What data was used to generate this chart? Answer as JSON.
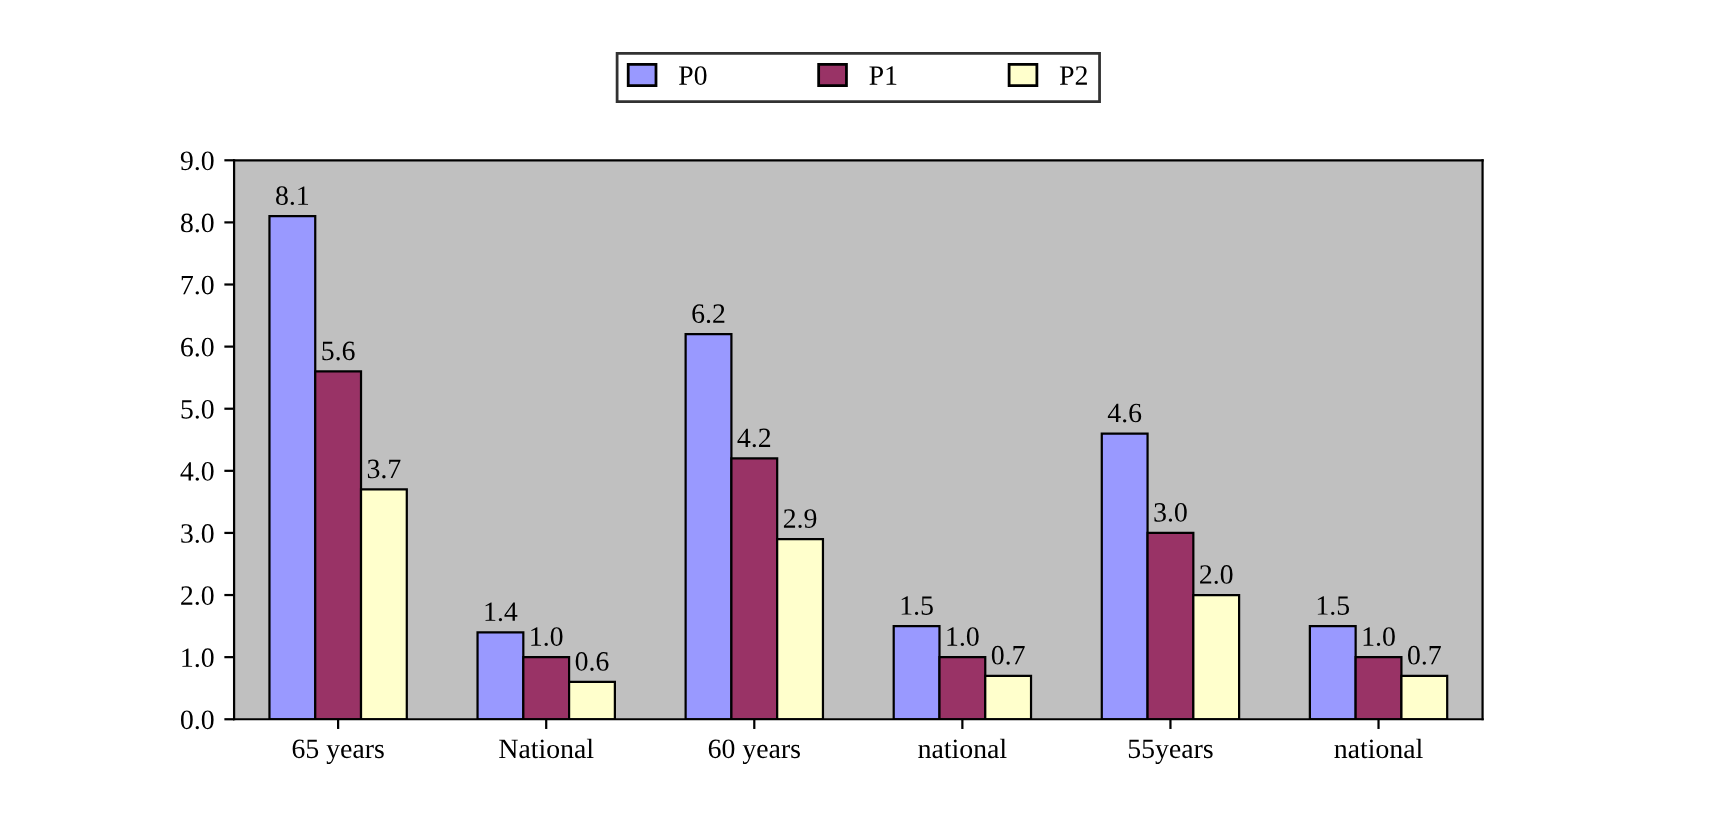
{
  "chart_data": {
    "type": "bar",
    "categories": [
      "65 years",
      "National",
      "60 years",
      "national",
      "55years",
      "national"
    ],
    "series": [
      {
        "name": "P0",
        "color": "#9999ff",
        "values": [
          8.1,
          1.4,
          6.2,
          1.5,
          4.6,
          1.5
        ],
        "value_labels": [
          "8.1",
          "1.4",
          "6.2",
          "1.5",
          "4.6",
          "1.5"
        ]
      },
      {
        "name": "P1",
        "color": "#993366",
        "values": [
          5.6,
          1.0,
          4.2,
          1.0,
          3.0,
          1.0
        ],
        "value_labels": [
          "5.6",
          "1.0",
          "4.2",
          "1.0",
          "3.0",
          "1.0"
        ]
      },
      {
        "name": "P2",
        "color": "#ffffcc",
        "values": [
          3.7,
          0.6,
          2.9,
          0.7,
          2.0,
          0.7
        ],
        "value_labels": [
          "3.7",
          "0.6",
          "2.9",
          "0.7",
          "2.0",
          "0.7"
        ]
      }
    ],
    "ylim": [
      0,
      9
    ],
    "yticks": [
      {
        "value": 0,
        "label": "0.0"
      },
      {
        "value": 1,
        "label": "1.0"
      },
      {
        "value": 2,
        "label": "2.0"
      },
      {
        "value": 3,
        "label": "3.0"
      },
      {
        "value": 4,
        "label": "4.0"
      },
      {
        "value": 5,
        "label": "5.0"
      },
      {
        "value": 6,
        "label": "6.0"
      },
      {
        "value": 7,
        "label": "7.0"
      },
      {
        "value": 8,
        "label": "8.0"
      },
      {
        "value": 9,
        "label": "9.0"
      }
    ],
    "grid": false,
    "legend": "top"
  }
}
